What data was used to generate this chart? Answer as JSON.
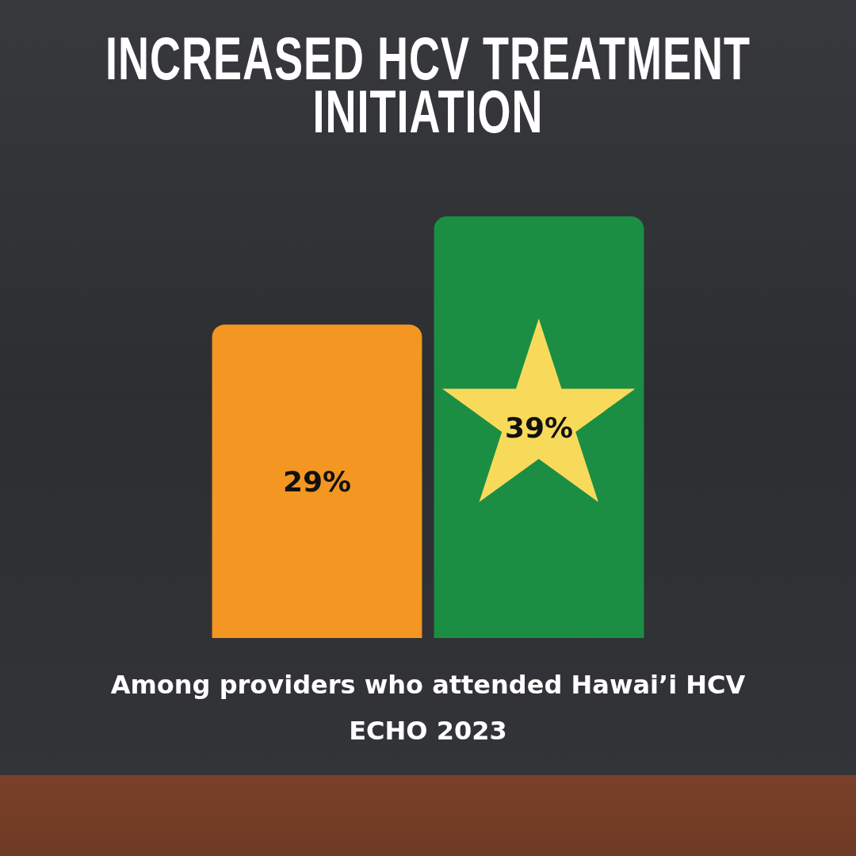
{
  "chart_data": {
    "type": "bar",
    "title": "INCREASED HCV TREATMENT INITIATION",
    "categories": [
      null,
      null
    ],
    "values": [
      29,
      39
    ],
    "colors": [
      "#f39622",
      "#1b8e44"
    ],
    "value_labels": [
      "29%",
      "39%"
    ],
    "tick_labels": false,
    "annotations": [
      "Among providers who attended Hawai’i HCV ECHO 2023"
    ]
  }
}
